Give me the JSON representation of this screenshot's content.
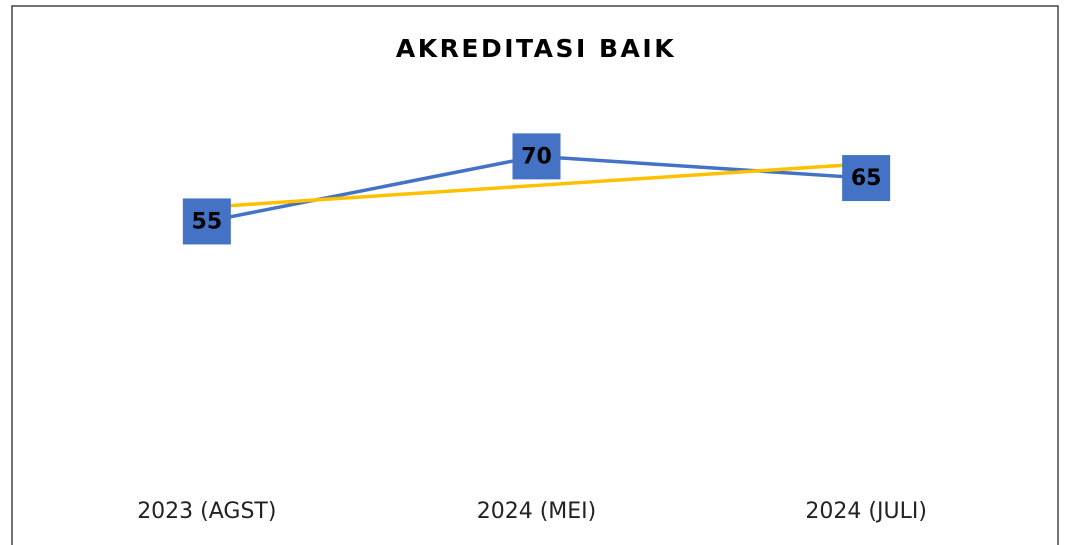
{
  "chart_data": {
    "type": "line",
    "title": "AKREDITASI BAIK",
    "categories": [
      "2023 (AGST)",
      "2024 (MEI)",
      "2024 (JULI)"
    ],
    "series": [
      {
        "color": "#4472c4",
        "values": [
          55,
          70,
          65
        ],
        "data_labels": true
      },
      {
        "color": "#ffc000",
        "values": [
          58.3,
          63.3,
          68.3
        ],
        "data_labels": false
      }
    ],
    "ylim": [
      0,
      80
    ]
  }
}
